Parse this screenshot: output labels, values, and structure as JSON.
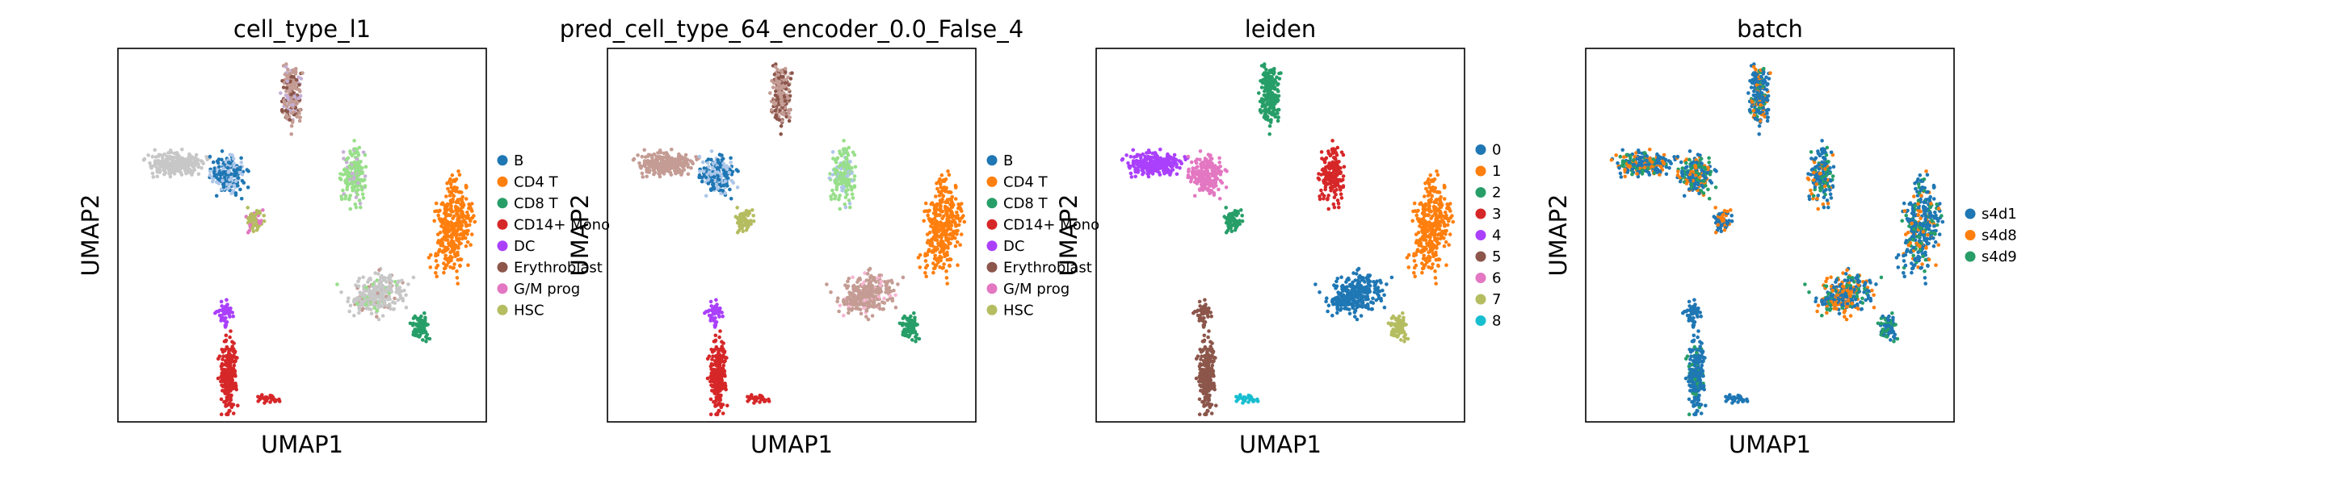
{
  "chart_data": [
    {
      "type": "scatter",
      "title": "cell_type_l1",
      "xlabel": "UMAP1",
      "ylabel": "UMAP2",
      "grid": false,
      "legend_position": "right",
      "legend": [
        {
          "label": "B",
          "color": "#1f77b4"
        },
        {
          "label": "CD4 T",
          "color": "#ff7f0e"
        },
        {
          "label": "CD8 T",
          "color": "#279e68"
        },
        {
          "label": "CD14+ Mono",
          "color": "#d62728"
        },
        {
          "label": "DC",
          "color": "#aa40fc"
        },
        {
          "label": "Erythroblast",
          "color": "#8c564b"
        },
        {
          "label": "G/M prog",
          "color": "#e377c2"
        },
        {
          "label": "HSC",
          "color": "#b5bd61"
        }
      ]
    },
    {
      "type": "scatter",
      "title": "pred_cell_type_64_encoder_0.0_False_4",
      "xlabel": "UMAP1",
      "ylabel": "UMAP2",
      "grid": false,
      "legend_position": "right",
      "legend": [
        {
          "label": "B",
          "color": "#1f77b4"
        },
        {
          "label": "CD4 T",
          "color": "#ff7f0e"
        },
        {
          "label": "CD8 T",
          "color": "#279e68"
        },
        {
          "label": "CD14+ Mono",
          "color": "#d62728"
        },
        {
          "label": "DC",
          "color": "#aa40fc"
        },
        {
          "label": "Erythroblast",
          "color": "#8c564b"
        },
        {
          "label": "G/M prog",
          "color": "#e377c2"
        },
        {
          "label": "HSC",
          "color": "#b5bd61"
        }
      ]
    },
    {
      "type": "scatter",
      "title": "leiden",
      "xlabel": "UMAP1",
      "ylabel": "UMAP2",
      "grid": false,
      "legend_position": "right",
      "legend": [
        {
          "label": "0",
          "color": "#1f77b4"
        },
        {
          "label": "1",
          "color": "#ff7f0e"
        },
        {
          "label": "2",
          "color": "#279e68"
        },
        {
          "label": "3",
          "color": "#d62728"
        },
        {
          "label": "4",
          "color": "#aa40fc"
        },
        {
          "label": "5",
          "color": "#8c564b"
        },
        {
          "label": "6",
          "color": "#e377c2"
        },
        {
          "label": "7",
          "color": "#b5bd61"
        },
        {
          "label": "8",
          "color": "#17becf"
        }
      ]
    },
    {
      "type": "scatter",
      "title": "batch",
      "xlabel": "UMAP1",
      "ylabel": "UMAP2",
      "grid": false,
      "legend_position": "right",
      "legend": [
        {
          "label": "s4d1",
          "color": "#1f77b4"
        },
        {
          "label": "s4d8",
          "color": "#ff7f0e"
        },
        {
          "label": "s4d9",
          "color": "#279e68"
        }
      ]
    }
  ]
}
